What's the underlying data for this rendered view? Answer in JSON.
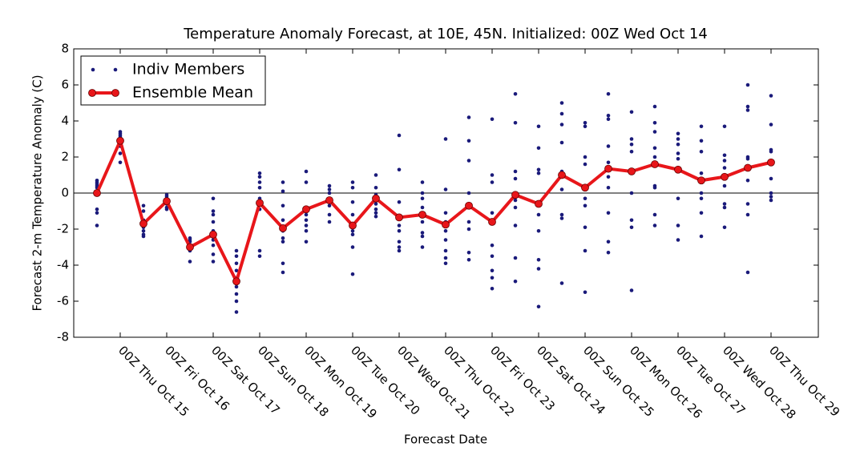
{
  "chart_data": {
    "type": "ensemble",
    "title": "Temperature Anomaly Forecast, at 10E, 45N.  Initialized: 00Z Wed Oct 14",
    "x_label": "Forecast Date",
    "y_label": "Forecast 2-m Temperature Anomaly (C)",
    "categories": [
      null,
      "00Z Thu Oct 15",
      null,
      "00Z Fri Oct 16",
      null,
      "00Z Sat Oct 17",
      null,
      "00Z Sun Oct 18",
      null,
      "00Z Mon Oct 19",
      null,
      "00Z Tue Oct 20",
      null,
      "00Z Wed Oct 21",
      null,
      "00Z Thu Oct 22",
      null,
      "00Z Fri Oct 23",
      null,
      "00Z Sat Oct 24",
      null,
      "00Z Sun Oct 25",
      null,
      "00Z Mon Oct 26",
      null,
      "00Z Tue Oct 27",
      null,
      "00Z Wed Oct 28",
      null,
      "00Z Thu Oct 29"
    ],
    "ylim": [
      -8,
      8
    ],
    "yticks": [
      -8,
      -6,
      -4,
      -2,
      0,
      2,
      4,
      6,
      8
    ],
    "legend": "upper left",
    "series": [
      {
        "name": "Indiv Members",
        "color": "#1a1a7a",
        "values": [
          [
            0.6,
            0.5,
            0.3,
            0.7,
            -0.9,
            -1.1,
            -1.8,
            0.4
          ],
          [
            3.4,
            3.3,
            3.2,
            3.0,
            2.6,
            2.2,
            1.7,
            3.1
          ],
          [
            -0.7,
            -1.0,
            -1.5,
            -1.9,
            -2.1,
            -2.3,
            -2.4,
            -1.6
          ],
          [
            -0.1,
            -0.2,
            -0.4,
            -0.6,
            -0.8,
            -0.9,
            -0.5,
            -0.3
          ],
          [
            -2.5,
            -2.7,
            -2.9,
            -3.1,
            -3.2,
            -3.8,
            -2.6
          ],
          [
            -0.3,
            -1.0,
            -1.2,
            -1.6,
            -2.1,
            -2.6,
            -2.9,
            -3.4,
            -3.8
          ],
          [
            -3.2,
            -3.5,
            -3.9,
            -4.3,
            -4.7,
            -5.2,
            -5.6,
            -6.0,
            -6.6
          ],
          [
            1.1,
            0.9,
            0.6,
            0.3,
            -0.3,
            -0.9,
            -3.2,
            -3.5
          ],
          [
            0.6,
            0.1,
            -0.7,
            -1.5,
            -2.1,
            -2.5,
            -2.7,
            -3.9,
            -4.4
          ],
          [
            1.2,
            0.6,
            -0.9,
            -1.2,
            -1.5,
            -1.8,
            -2.1,
            -2.7
          ],
          [
            0.4,
            0.2,
            0.0,
            -0.3,
            -0.7,
            -1.2,
            -1.6
          ],
          [
            0.6,
            0.3,
            -0.5,
            -1.2,
            -1.7,
            -2.1,
            -2.3,
            -3.0,
            -4.5
          ],
          [
            1.0,
            0.3,
            -0.1,
            -0.4,
            -0.6,
            -0.9,
            -1.1,
            -1.3
          ],
          [
            3.2,
            1.3,
            -0.5,
            -1.8,
            -2.1,
            -2.7,
            -3.0,
            -3.2
          ],
          [
            0.6,
            0.0,
            -0.3,
            -0.8,
            -1.2,
            -1.6,
            -2.2,
            -2.4,
            -3.0
          ],
          [
            3.0,
            0.2,
            -1.1,
            -1.6,
            -2.1,
            -2.6,
            -3.2,
            -3.6,
            -3.9
          ],
          [
            4.2,
            2.9,
            1.8,
            0.0,
            -0.8,
            -1.6,
            -2.0,
            -3.3,
            -3.7
          ],
          [
            4.1,
            1.0,
            0.6,
            -1.1,
            -2.9,
            -3.5,
            -4.3,
            -4.7,
            -5.3
          ],
          [
            5.5,
            3.9,
            1.2,
            0.8,
            -0.4,
            -0.8,
            -1.8,
            -3.6,
            -4.9
          ],
          [
            3.7,
            2.5,
            1.3,
            1.1,
            -1.2,
            -2.1,
            -3.7,
            -4.2,
            -6.3
          ],
          [
            5.0,
            4.4,
            3.8,
            2.8,
            1.2,
            0.2,
            -1.2,
            -1.4,
            -5.0
          ],
          [
            3.9,
            3.7,
            2.0,
            1.6,
            -0.3,
            -0.7,
            -1.9,
            -3.2,
            -5.5
          ],
          [
            5.5,
            4.3,
            4.1,
            2.6,
            1.7,
            0.9,
            0.3,
            -1.1,
            -2.7,
            -3.3
          ],
          [
            4.5,
            3.0,
            2.7,
            2.3,
            0.0,
            -1.5,
            -1.9,
            -5.4
          ],
          [
            4.8,
            3.9,
            3.4,
            2.5,
            2.0,
            0.4,
            0.3,
            -1.2,
            -1.8
          ],
          [
            3.3,
            3.0,
            2.7,
            2.2,
            1.9,
            -0.3,
            -1.8,
            -2.6
          ],
          [
            3.7,
            2.9,
            2.3,
            1.1,
            0.8,
            0.0,
            -0.3,
            -1.1,
            -2.4
          ],
          [
            3.7,
            2.1,
            1.8,
            1.4,
            0.4,
            -0.6,
            -0.8,
            -1.9
          ],
          [
            6.0,
            4.8,
            4.6,
            2.0,
            1.9,
            0.7,
            -0.6,
            -1.2,
            -4.4
          ],
          [
            5.4,
            3.8,
            2.4,
            2.3,
            1.7,
            0.8,
            0.0,
            -0.2,
            -0.4
          ]
        ]
      },
      {
        "name": "Ensemble Mean",
        "color": "#e8161a",
        "values": [
          0,
          2.9,
          -1.7,
          -0.45,
          -3.0,
          -2.3,
          -4.9,
          -0.55,
          -1.95,
          -0.9,
          -0.4,
          -1.8,
          -0.3,
          -1.35,
          -1.2,
          -1.75,
          -0.7,
          -1.6,
          -0.1,
          -0.6,
          1.0,
          0.3,
          1.35,
          1.2,
          1.6,
          1.3,
          0.7,
          0.9,
          1.4,
          1.7
        ]
      }
    ]
  }
}
